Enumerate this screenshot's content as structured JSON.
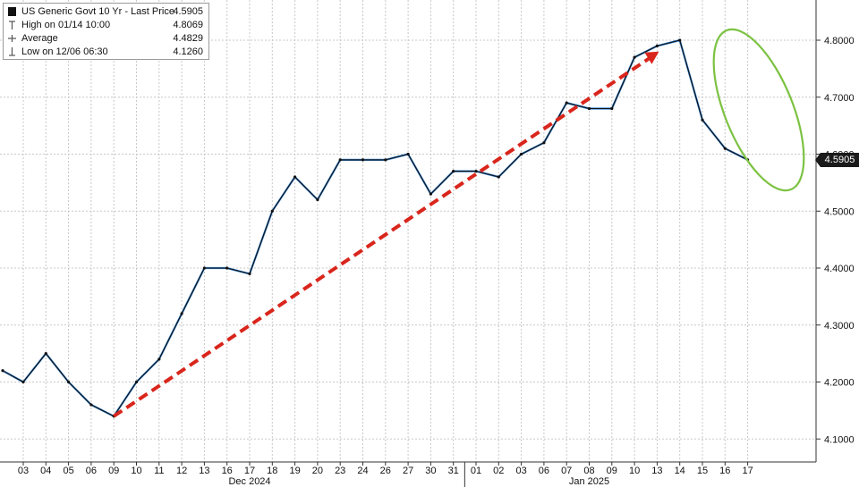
{
  "legend": {
    "series_label": "US Generic Govt 10 Yr - Last Price",
    "series_value": "4.5905",
    "high_label": "High on 01/14 10:00",
    "high_value": "4.8069",
    "avg_label": "Average",
    "avg_value": "4.4829",
    "low_label": "Low on 12/06 06:30",
    "low_value": "4.1260"
  },
  "last_price_badge": "4.5905",
  "colors": {
    "price_line": "#111111",
    "price_line_highlight": "#2f7fd0",
    "trend_arrow": "#d9261c",
    "ellipse": "#7cc242",
    "grid": "#c8c8c8",
    "badge_bg": "#1a1a1a"
  },
  "chart_data": {
    "type": "line",
    "title": "US Generic Govt 10 Yr - Last Price",
    "xlabel": "",
    "ylabel": "",
    "ylim": [
      4.08,
      4.84
    ],
    "grid": true,
    "y_axis_side": "right",
    "y_ticks": [
      "4.8000",
      "4.7000",
      "4.6000",
      "4.5000",
      "4.4000",
      "4.3000",
      "4.2000",
      "4.1000"
    ],
    "x_ticks": [
      "03",
      "04",
      "05",
      "06",
      "09",
      "10",
      "11",
      "12",
      "13",
      "16",
      "17",
      "18",
      "19",
      "20",
      "23",
      "24",
      "26",
      "27",
      "30",
      "31",
      "01",
      "02",
      "03",
      "06",
      "07",
      "08",
      "09",
      "10",
      "13",
      "14",
      "15",
      "16",
      "17"
    ],
    "month_labels": [
      {
        "label": "Dec 2024",
        "at": "17"
      },
      {
        "label": "Jan 2025",
        "at": "08"
      }
    ],
    "series": [
      {
        "name": "US Generic Govt 10 Yr",
        "points": [
          [
            "02",
            4.22
          ],
          [
            "03",
            4.2
          ],
          [
            "04",
            4.25
          ],
          [
            "05",
            4.2
          ],
          [
            "06",
            4.16
          ],
          [
            "09",
            4.14
          ],
          [
            "10",
            4.2
          ],
          [
            "11",
            4.24
          ],
          [
            "12",
            4.32
          ],
          [
            "13",
            4.4
          ],
          [
            "16",
            4.4
          ],
          [
            "17",
            4.39
          ],
          [
            "18",
            4.5
          ],
          [
            "19",
            4.56
          ],
          [
            "20",
            4.52
          ],
          [
            "23",
            4.59
          ],
          [
            "24",
            4.59
          ],
          [
            "26",
            4.59
          ],
          [
            "27",
            4.6
          ],
          [
            "30",
            4.53
          ],
          [
            "31",
            4.57
          ],
          [
            "01",
            4.57
          ],
          [
            "02",
            4.56
          ],
          [
            "03",
            4.6
          ],
          [
            "06",
            4.62
          ],
          [
            "07",
            4.69
          ],
          [
            "08",
            4.68
          ],
          [
            "09",
            4.68
          ],
          [
            "10",
            4.77
          ],
          [
            "13",
            4.79
          ],
          [
            "14",
            4.8
          ],
          [
            "15",
            4.66
          ],
          [
            "16",
            4.61
          ],
          [
            "17",
            4.59
          ]
        ]
      }
    ],
    "annotations": [
      {
        "type": "dashed-arrow",
        "color": "red",
        "from": [
          "09",
          4.14
        ],
        "to": [
          "13",
          4.78
        ]
      },
      {
        "type": "ellipse",
        "color": "green",
        "around": [
          "14",
          "17"
        ]
      }
    ],
    "stats": {
      "last": 4.5905,
      "high": 4.8069,
      "average": 4.4829,
      "low": 4.126
    }
  }
}
